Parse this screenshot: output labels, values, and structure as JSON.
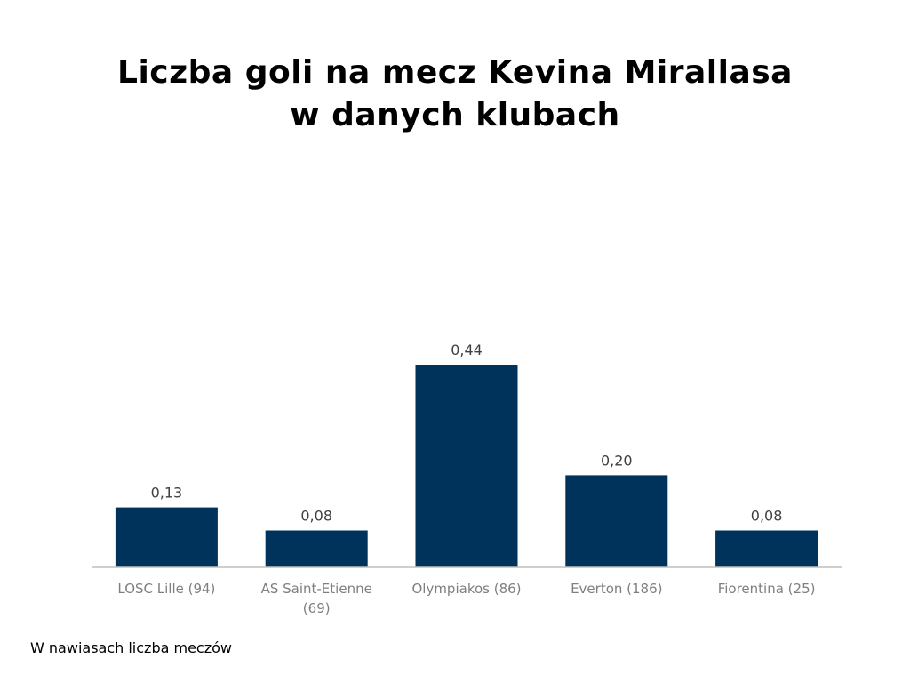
{
  "chart_data": {
    "type": "bar",
    "title": "Liczba goli na mecz Kevina Mirallasa w danych klubach",
    "categories": [
      "LOSC Lille (94)",
      "AS Saint-Etienne (69)",
      "Olympiakos (86)",
      "Everton (186)",
      "Fiorentina (25)"
    ],
    "values": [
      0.13,
      0.08,
      0.44,
      0.2,
      0.08
    ],
    "data_labels": [
      "0,13",
      "0,08",
      "0,44",
      "0,20",
      "0,08"
    ],
    "xlabel": "",
    "ylabel": "",
    "ylim": [
      0,
      0.44
    ],
    "grid": false,
    "legend": "none",
    "colors": {
      "bar": "#00335c",
      "axis": "#bfbfbf",
      "data_label": "#404040",
      "tick_label": "#7f7f7f"
    }
  },
  "footnote": "W nawiasach liczba meczów"
}
